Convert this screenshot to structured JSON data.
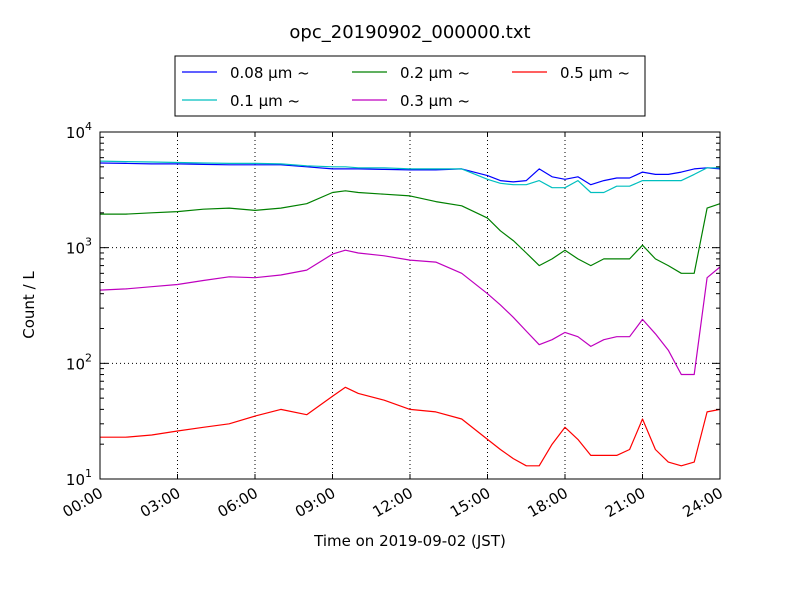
{
  "chart_data": {
    "type": "line",
    "title": "opc_20190902_000000.txt",
    "xlabel": "Time on 2019-09-02 (JST)",
    "ylabel": "Count / L",
    "yscale": "log",
    "ylim": [
      10,
      10000
    ],
    "xlim": [
      "2019-09-02 00:00",
      "2019-09-03 00:00"
    ],
    "grid": true,
    "legend_position": "top",
    "x_ticks": [
      "00:00",
      "03:00",
      "06:00",
      "09:00",
      "12:00",
      "15:00",
      "18:00",
      "21:00",
      "24:00"
    ],
    "y_ticks": [
      {
        "base": "10",
        "exp": "1",
        "value": 10
      },
      {
        "base": "10",
        "exp": "2",
        "value": 100
      },
      {
        "base": "10",
        "exp": "3",
        "value": 1000
      },
      {
        "base": "10",
        "exp": "4",
        "value": 10000
      }
    ],
    "x": [
      "00:00",
      "01:00",
      "02:00",
      "03:00",
      "04:00",
      "05:00",
      "06:00",
      "07:00",
      "08:00",
      "09:00",
      "09:30",
      "10:00",
      "11:00",
      "12:00",
      "13:00",
      "14:00",
      "15:00",
      "15:30",
      "16:00",
      "16:30",
      "17:00",
      "17:30",
      "18:00",
      "18:30",
      "19:00",
      "19:30",
      "20:00",
      "20:30",
      "21:00",
      "21:30",
      "22:00",
      "22:30",
      "23:00",
      "23:30",
      "24:00"
    ],
    "series": [
      {
        "name": "0.08 μm ~",
        "color": "#0000ff",
        "values": [
          5400,
          5350,
          5300,
          5300,
          5250,
          5200,
          5200,
          5200,
          5000,
          4800,
          4800,
          4800,
          4750,
          4700,
          4700,
          4800,
          4200,
          3800,
          3700,
          3800,
          4800,
          4100,
          3900,
          4100,
          3500,
          3800,
          4000,
          4000,
          4500,
          4300,
          4300,
          4500,
          4800,
          4900,
          4800
        ]
      },
      {
        "name": "0.1 μm ~",
        "color": "#00bfbf",
        "values": [
          5600,
          5550,
          5500,
          5450,
          5400,
          5350,
          5350,
          5300,
          5100,
          5000,
          5000,
          4900,
          4900,
          4800,
          4800,
          4800,
          3900,
          3600,
          3500,
          3500,
          3800,
          3300,
          3300,
          3800,
          3000,
          3000,
          3400,
          3400,
          3800,
          3800,
          3800,
          3800,
          4300,
          4900,
          4900
        ]
      },
      {
        "name": "0.2 μm ~",
        "color": "#008000",
        "values": [
          1950,
          1950,
          2000,
          2050,
          2150,
          2200,
          2100,
          2200,
          2400,
          3000,
          3100,
          3000,
          2900,
          2800,
          2500,
          2300,
          1800,
          1400,
          1150,
          900,
          700,
          800,
          950,
          800,
          700,
          800,
          800,
          800,
          1050,
          800,
          700,
          600,
          600,
          2200,
          2400
        ]
      },
      {
        "name": "0.3 μm ~",
        "color": "#bf00bf",
        "values": [
          430,
          440,
          460,
          480,
          520,
          560,
          550,
          580,
          640,
          880,
          950,
          900,
          850,
          780,
          750,
          600,
          400,
          320,
          250,
          190,
          145,
          160,
          185,
          170,
          140,
          160,
          170,
          170,
          240,
          180,
          130,
          80,
          80,
          550,
          680
        ]
      },
      {
        "name": "0.5 μm ~",
        "color": "#ff0000",
        "values": [
          23,
          23,
          24,
          26,
          28,
          30,
          35,
          40,
          36,
          52,
          62,
          55,
          48,
          40,
          38,
          33,
          22,
          18,
          15,
          13,
          13,
          20,
          28,
          22,
          16,
          16,
          16,
          18,
          33,
          18,
          14,
          13,
          14,
          38,
          40
        ]
      }
    ]
  }
}
